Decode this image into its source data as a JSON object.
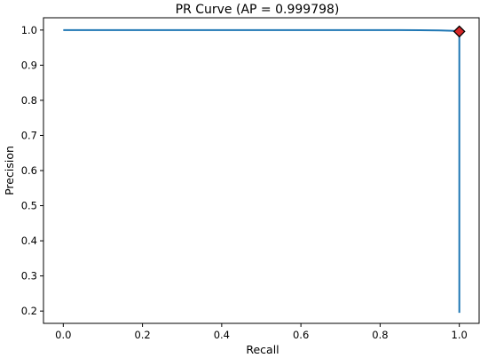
{
  "chart_data": {
    "type": "line",
    "title": "PR Curve (AP = 0.999798)",
    "xlabel": "Recall",
    "ylabel": "Precision",
    "xlim": [
      -0.05,
      1.05
    ],
    "ylim": [
      0.165,
      1.035
    ],
    "xticks": [
      "0.0",
      "0.2",
      "0.4",
      "0.6",
      "0.8",
      "1.0"
    ],
    "yticks": [
      "0.2",
      "0.3",
      "0.4",
      "0.5",
      "0.6",
      "0.7",
      "0.8",
      "0.9",
      "1.0"
    ],
    "grid": false,
    "series": [
      {
        "color": "#1f77b4",
        "x": [
          0.0,
          0.2,
          0.4,
          0.6,
          0.8,
          0.85,
          0.9,
          0.95,
          0.98,
          0.995,
          1.0,
          1.0,
          1.0
        ],
        "y": [
          1.0,
          1.0,
          1.0,
          1.0,
          1.0,
          1.0,
          0.9995,
          0.999,
          0.998,
          0.997,
          0.996,
          0.99,
          0.195
        ]
      }
    ],
    "marker": {
      "shape": "diamond",
      "x": 1.0,
      "y": 0.996,
      "fill": "#d62728",
      "edge": "#000000"
    }
  }
}
